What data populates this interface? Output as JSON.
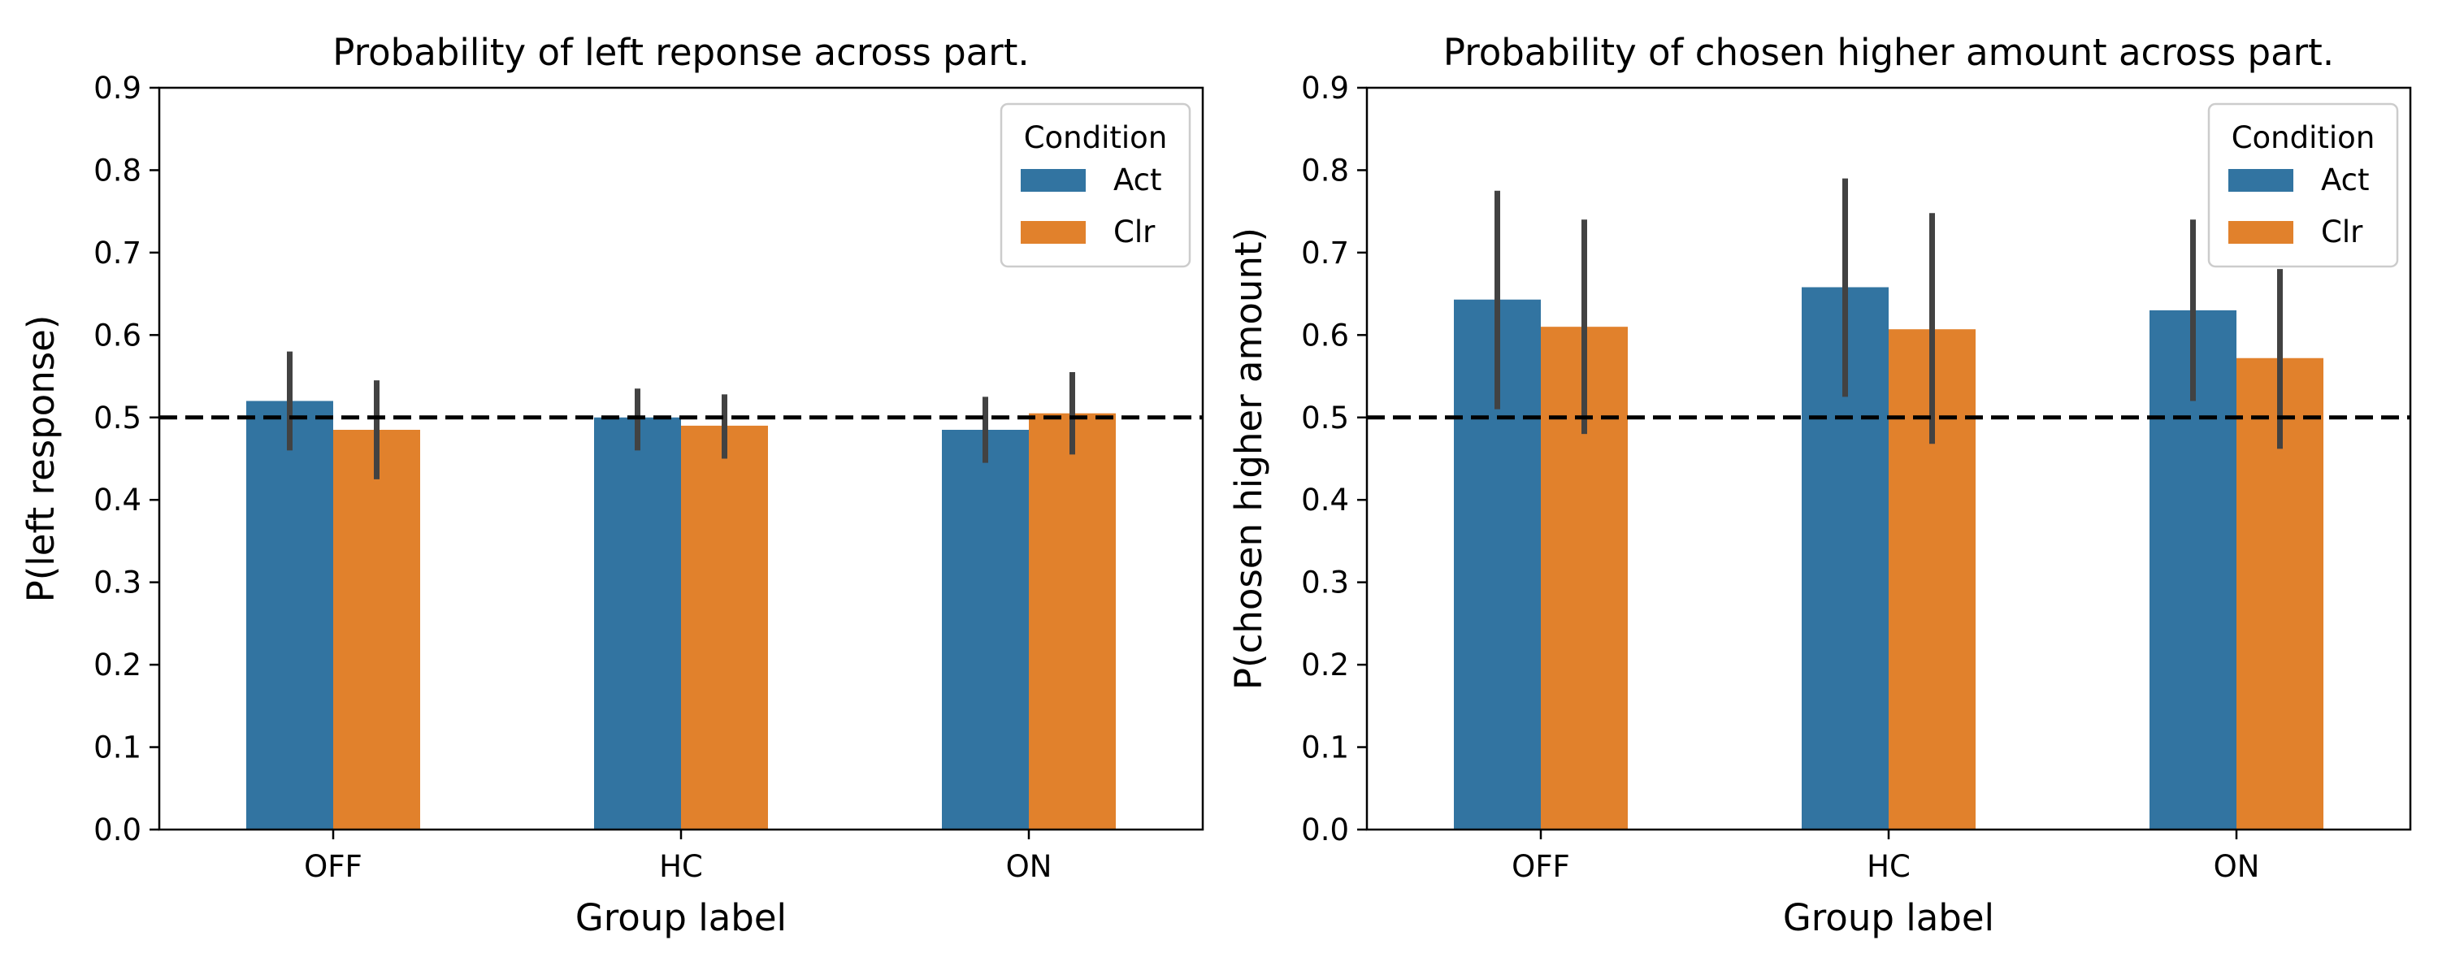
{
  "chart_data": [
    {
      "type": "bar",
      "title": "Probability of left reponse across part.",
      "xlabel": "Group label",
      "ylabel": "P(left response)",
      "categories": [
        "OFF",
        "HC",
        "ON"
      ],
      "ylim": [
        0,
        0.9
      ],
      "yticks": [
        "0.0",
        "0.1",
        "0.2",
        "0.3",
        "0.4",
        "0.5",
        "0.6",
        "0.7",
        "0.8",
        "0.9"
      ],
      "reference_line": 0.5,
      "legend": {
        "title": "Condition",
        "placement": "top-right"
      },
      "series": [
        {
          "name": "Act",
          "color": "#3274a1",
          "values": [
            0.52,
            0.5,
            0.485
          ],
          "ci_low": [
            0.46,
            0.46,
            0.445
          ],
          "ci_high": [
            0.58,
            0.535,
            0.525
          ]
        },
        {
          "name": "Clr",
          "color": "#e1812c",
          "values": [
            0.485,
            0.49,
            0.505
          ],
          "ci_low": [
            0.425,
            0.45,
            0.455
          ],
          "ci_high": [
            0.545,
            0.528,
            0.555
          ]
        }
      ]
    },
    {
      "type": "bar",
      "title": "Probability of chosen higher amount across part.",
      "xlabel": "Group label",
      "ylabel": "P(chosen higher amount)",
      "categories": [
        "OFF",
        "HC",
        "ON"
      ],
      "ylim": [
        0,
        0.9
      ],
      "yticks": [
        "0.0",
        "0.1",
        "0.2",
        "0.3",
        "0.4",
        "0.5",
        "0.6",
        "0.7",
        "0.8",
        "0.9"
      ],
      "reference_line": 0.5,
      "legend": {
        "title": "Condition",
        "placement": "top-right"
      },
      "series": [
        {
          "name": "Act",
          "color": "#3274a1",
          "values": [
            0.643,
            0.658,
            0.63
          ],
          "ci_low": [
            0.51,
            0.525,
            0.52
          ],
          "ci_high": [
            0.775,
            0.79,
            0.74
          ]
        },
        {
          "name": "Clr",
          "color": "#e1812c",
          "values": [
            0.61,
            0.607,
            0.572
          ],
          "ci_low": [
            0.48,
            0.468,
            0.462
          ],
          "ci_high": [
            0.74,
            0.748,
            0.68
          ]
        }
      ]
    }
  ]
}
